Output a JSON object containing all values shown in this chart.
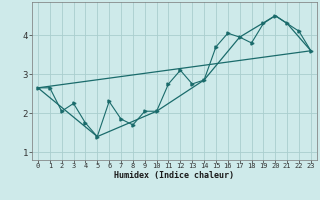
{
  "xlabel": "Humidex (Indice chaleur)",
  "bg_color": "#ceeaea",
  "grid_color": "#aacece",
  "line_color": "#1a6b6b",
  "xlim_min": -0.5,
  "xlim_max": 23.5,
  "ylim_min": 0.8,
  "ylim_max": 4.85,
  "yticks": [
    1,
    2,
    3,
    4
  ],
  "xticks": [
    0,
    1,
    2,
    3,
    4,
    5,
    6,
    7,
    8,
    9,
    10,
    11,
    12,
    13,
    14,
    15,
    16,
    17,
    18,
    19,
    20,
    21,
    22,
    23
  ],
  "line1_x": [
    0,
    1,
    2,
    3,
    4,
    5,
    6,
    7,
    8,
    9,
    10,
    11,
    12,
    13,
    14,
    15,
    16,
    17,
    18,
    19,
    20,
    21,
    22,
    23
  ],
  "line1_y": [
    2.65,
    2.65,
    2.05,
    2.25,
    1.75,
    1.4,
    2.3,
    1.85,
    1.7,
    2.05,
    2.05,
    2.75,
    3.1,
    2.75,
    2.85,
    3.7,
    4.05,
    3.95,
    3.8,
    4.3,
    4.5,
    4.3,
    4.1,
    3.6
  ],
  "line2_x": [
    0,
    5,
    10,
    14,
    17,
    20,
    21,
    23
  ],
  "line2_y": [
    2.65,
    1.4,
    2.05,
    2.85,
    3.95,
    4.5,
    4.3,
    3.6
  ],
  "line3_x": [
    0,
    23
  ],
  "line3_y": [
    2.65,
    3.6
  ]
}
